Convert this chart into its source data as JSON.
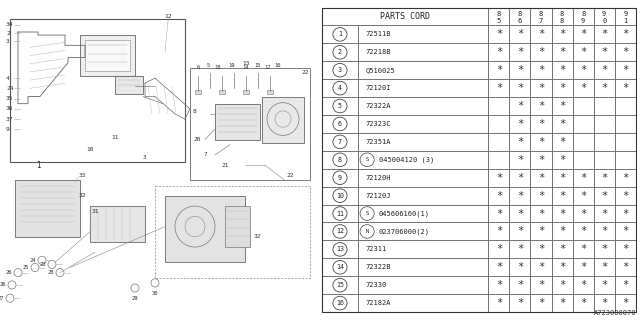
{
  "bg_color": "#ffffff",
  "diagram_code": "A723000070",
  "lc": "#888888",
  "lc_dark": "#555555",
  "table": {
    "header_col": "PARTS CORD",
    "year_cols": [
      "85",
      "86",
      "87",
      "88",
      "89",
      "90",
      "91"
    ],
    "rows": [
      {
        "num": "1",
        "special": "",
        "part": "72511B",
        "marks": [
          1,
          1,
          1,
          1,
          1,
          1,
          1
        ]
      },
      {
        "num": "2",
        "special": "",
        "part": "72218B",
        "marks": [
          1,
          1,
          1,
          1,
          1,
          1,
          1
        ]
      },
      {
        "num": "3",
        "special": "",
        "part": "Q510025",
        "marks": [
          1,
          1,
          1,
          1,
          1,
          1,
          1
        ]
      },
      {
        "num": "4",
        "special": "",
        "part": "72120I",
        "marks": [
          1,
          1,
          1,
          1,
          1,
          1,
          1
        ]
      },
      {
        "num": "5",
        "special": "",
        "part": "72322A",
        "marks": [
          0,
          1,
          1,
          1,
          0,
          0,
          0
        ]
      },
      {
        "num": "6",
        "special": "",
        "part": "72323C",
        "marks": [
          0,
          1,
          1,
          1,
          0,
          0,
          0
        ]
      },
      {
        "num": "7",
        "special": "",
        "part": "72351A",
        "marks": [
          0,
          1,
          1,
          1,
          0,
          0,
          0
        ]
      },
      {
        "num": "8",
        "special": "S",
        "part": "045004120 (3)",
        "marks": [
          0,
          1,
          1,
          1,
          0,
          0,
          0
        ]
      },
      {
        "num": "9",
        "special": "",
        "part": "72120H",
        "marks": [
          1,
          1,
          1,
          1,
          1,
          1,
          1
        ]
      },
      {
        "num": "10",
        "special": "",
        "part": "72120J",
        "marks": [
          1,
          1,
          1,
          1,
          1,
          1,
          1
        ]
      },
      {
        "num": "11",
        "special": "S",
        "part": "045606160(1)",
        "marks": [
          1,
          1,
          1,
          1,
          1,
          1,
          1
        ]
      },
      {
        "num": "12",
        "special": "N",
        "part": "023706000(2)",
        "marks": [
          1,
          1,
          1,
          1,
          1,
          1,
          1
        ]
      },
      {
        "num": "13",
        "special": "",
        "part": "72311",
        "marks": [
          1,
          1,
          1,
          1,
          1,
          1,
          1
        ]
      },
      {
        "num": "14",
        "special": "",
        "part": "72322B",
        "marks": [
          1,
          1,
          1,
          1,
          1,
          1,
          1
        ]
      },
      {
        "num": "15",
        "special": "",
        "part": "72330",
        "marks": [
          1,
          1,
          1,
          1,
          1,
          1,
          1
        ]
      },
      {
        "num": "16",
        "special": "",
        "part": "72182A",
        "marks": [
          1,
          1,
          1,
          1,
          1,
          1,
          1
        ]
      }
    ]
  }
}
